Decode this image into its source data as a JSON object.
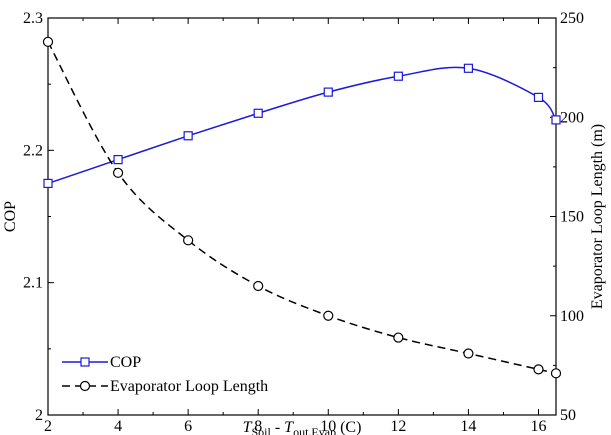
{
  "chart_data": {
    "type": "line",
    "xlabel": {
      "t1": "T",
      "s1": "Soil",
      "mid": " - ",
      "t2": "T",
      "s2": "out.Evap",
      "unit": " (C)"
    },
    "ylabel_left": "COP",
    "ylabel_right": "Evaporator Loop Length (m)",
    "xlim": [
      2,
      16.5
    ],
    "ylim_left": [
      2.0,
      2.3
    ],
    "ylim_right": [
      50,
      250
    ],
    "x_ticks": [
      "2",
      "4",
      "6",
      "8",
      "10",
      "12",
      "14",
      "16"
    ],
    "y_left_ticks": [
      "2",
      "2.1",
      "2.2",
      "2.3"
    ],
    "y_right_ticks": [
      "50",
      "100",
      "150",
      "200",
      "250"
    ],
    "grid": false,
    "legend_position": "bottom-left",
    "series": [
      {
        "name": "COP",
        "axis": "left",
        "color": "#1a1adc",
        "line_style": "solid",
        "marker": "square",
        "x": [
          2,
          4,
          6,
          8,
          10,
          12,
          14,
          16,
          16.5
        ],
        "y": [
          2.175,
          2.193,
          2.211,
          2.228,
          2.244,
          2.256,
          2.262,
          2.24,
          2.223
        ]
      },
      {
        "name": "Evaporator Loop Length",
        "axis": "right",
        "color": "#000000",
        "line_style": "dashed",
        "marker": "circle",
        "x": [
          2,
          4,
          6,
          8,
          10,
          12,
          14,
          16,
          16.5
        ],
        "y": [
          238,
          172,
          138,
          115,
          100,
          89,
          81,
          73,
          71
        ]
      }
    ]
  }
}
